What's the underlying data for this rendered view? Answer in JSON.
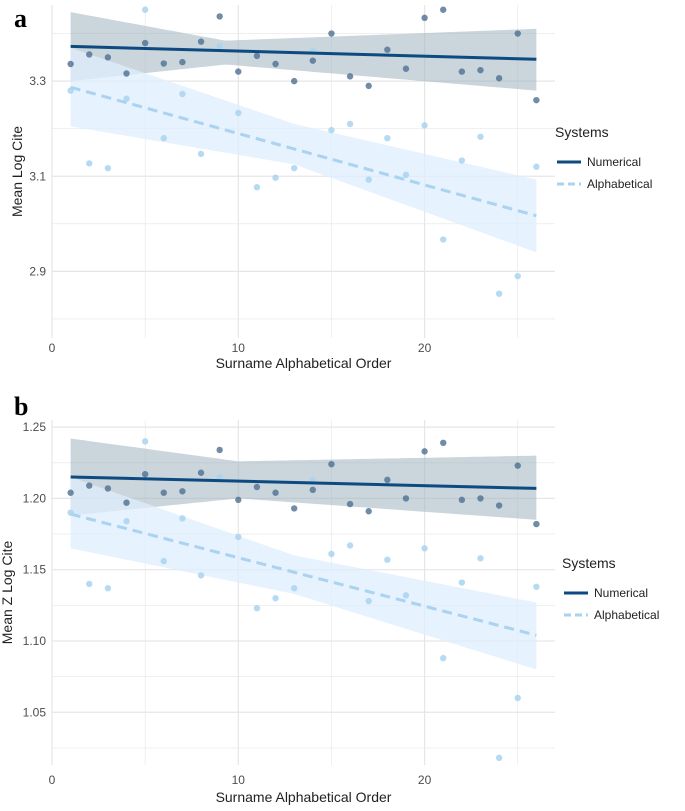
{
  "figure_colors": {
    "numerical": "#0d4a80",
    "numerical_band": "#9fb3bf",
    "alphabetical": "#a9d3f0",
    "alphabetical_band": "#ddeefc",
    "grid": "#e6e6e6"
  },
  "chart_data": [
    {
      "type": "scatter",
      "panel_label": "a",
      "title": "",
      "xlabel": "Surname Alphabetical Order",
      "ylabel": "Mean Log Cite",
      "xlim": [
        0,
        27
      ],
      "ylim": [
        2.76,
        3.46
      ],
      "x_ticks": [
        0,
        10,
        20
      ],
      "y_ticks": [
        2.9,
        3.1,
        3.3
      ],
      "y_tick_labels": [
        "2.9",
        "3.1",
        "3.3"
      ],
      "legend_title": "Systems",
      "legend_position": "right",
      "series": [
        {
          "name": "Numerical",
          "line_style": "solid",
          "x": [
            1,
            2,
            3,
            4,
            5,
            6,
            7,
            8,
            9,
            10,
            11,
            12,
            13,
            14,
            15,
            16,
            17,
            18,
            19,
            20,
            21,
            22,
            23,
            24,
            25,
            26
          ],
          "values": [
            3.336,
            3.356,
            3.35,
            3.316,
            3.38,
            3.337,
            3.34,
            3.383,
            3.436,
            3.32,
            3.353,
            3.336,
            3.3,
            3.343,
            3.4,
            3.31,
            3.29,
            3.366,
            3.326,
            3.433,
            3.45,
            3.32,
            3.323,
            3.306,
            3.4,
            3.26
          ],
          "fit": {
            "x": [
              1,
              26
            ],
            "y": [
              3.373,
              3.346
            ]
          },
          "ci_band": {
            "x": [
              1,
              9.3,
              26
            ],
            "lower": [
              3.3,
              3.335,
              3.28
            ],
            "upper": [
              3.445,
              3.385,
              3.41
            ]
          }
        },
        {
          "name": "Alphabetical",
          "line_style": "dashed",
          "x": [
            1,
            2,
            3,
            4,
            5,
            6,
            7,
            8,
            9,
            10,
            11,
            12,
            13,
            14,
            15,
            16,
            17,
            18,
            19,
            20,
            21,
            22,
            23,
            24,
            25,
            26
          ],
          "values": [
            3.28,
            3.127,
            3.117,
            3.263,
            3.45,
            3.18,
            3.273,
            3.147,
            3.373,
            3.233,
            3.077,
            3.097,
            3.117,
            3.363,
            3.197,
            3.21,
            3.093,
            3.18,
            3.103,
            3.207,
            2.967,
            3.133,
            3.183,
            2.853,
            2.89,
            3.12
          ],
          "fit": {
            "x": [
              1,
              26
            ],
            "y": [
              3.287,
              3.017
            ]
          },
          "ci_band": {
            "x": [
              1,
              13,
              26
            ],
            "lower": [
              3.205,
              3.125,
              2.94
            ],
            "upper": [
              3.37,
              3.21,
              3.093
            ]
          }
        }
      ]
    },
    {
      "type": "scatter",
      "panel_label": "b",
      "title": "",
      "xlabel": "Surname Alphabetical Order",
      "ylabel": "Mean Z Log Cite",
      "xlim": [
        0,
        27
      ],
      "ylim": [
        1.013,
        1.255
      ],
      "x_ticks": [
        0,
        10,
        20
      ],
      "y_ticks": [
        1.05,
        1.1,
        1.15,
        1.2,
        1.25
      ],
      "y_tick_labels": [
        "1.05",
        "1.10",
        "1.15",
        "1.20",
        "1.25"
      ],
      "legend_title": "Systems",
      "legend_position": "right",
      "series": [
        {
          "name": "Numerical",
          "line_style": "solid",
          "x": [
            1,
            2,
            3,
            4,
            5,
            6,
            7,
            8,
            9,
            10,
            11,
            12,
            13,
            14,
            15,
            16,
            17,
            18,
            19,
            20,
            21,
            22,
            23,
            24,
            25,
            26
          ],
          "values": [
            1.204,
            1.209,
            1.207,
            1.197,
            1.217,
            1.204,
            1.205,
            1.218,
            1.234,
            1.199,
            1.208,
            1.204,
            1.193,
            1.206,
            1.224,
            1.196,
            1.191,
            1.213,
            1.2,
            1.233,
            1.239,
            1.199,
            1.2,
            1.195,
            1.223,
            1.182
          ],
          "fit": {
            "x": [
              1,
              26
            ],
            "y": [
              1.215,
              1.207
            ]
          },
          "ci_band": {
            "x": [
              1,
              10,
              26
            ],
            "lower": [
              1.188,
              1.2,
              1.185
            ],
            "upper": [
              1.242,
              1.226,
              1.23
            ]
          }
        },
        {
          "name": "Alphabetical",
          "line_style": "dashed",
          "x": [
            1,
            2,
            3,
            4,
            5,
            6,
            7,
            8,
            9,
            10,
            11,
            12,
            13,
            14,
            15,
            16,
            17,
            18,
            19,
            20,
            21,
            22,
            23,
            24,
            25,
            26
          ],
          "values": [
            1.19,
            1.14,
            1.137,
            1.184,
            1.24,
            1.156,
            1.186,
            1.146,
            1.215,
            1.173,
            1.123,
            1.13,
            1.137,
            1.213,
            1.161,
            1.167,
            1.128,
            1.157,
            1.132,
            1.165,
            1.088,
            1.141,
            1.158,
            1.018,
            1.06,
            1.138
          ],
          "fit": {
            "x": [
              1,
              26
            ],
            "y": [
              1.189,
              1.104
            ]
          },
          "ci_band": {
            "x": [
              1,
              13,
              26
            ],
            "lower": [
              1.165,
              1.133,
              1.08
            ],
            "upper": [
              1.215,
              1.16,
              1.127
            ]
          }
        }
      ]
    }
  ]
}
